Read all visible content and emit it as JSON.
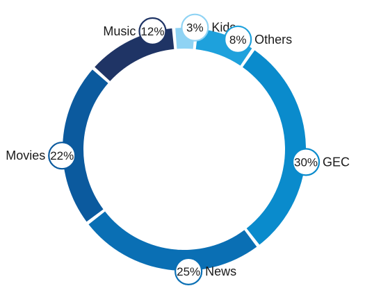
{
  "chart_data": {
    "type": "pie",
    "variant": "donut",
    "title": "",
    "slices": [
      {
        "label": "Kids",
        "value": 3,
        "value_label": "3%",
        "color": "#8fd3f4"
      },
      {
        "label": "Others",
        "value": 8,
        "value_label": "8%",
        "color": "#1ea1dc"
      },
      {
        "label": "GEC",
        "value": 30,
        "value_label": "30%",
        "color": "#0a8bcc"
      },
      {
        "label": "News",
        "value": 25,
        "value_label": "25%",
        "color": "#0a6fb4"
      },
      {
        "label": "Movies",
        "value": 22,
        "value_label": "22%",
        "color": "#0b5a9e"
      },
      {
        "label": "Music",
        "value": 12,
        "value_label": "12%",
        "color": "#1f3465"
      }
    ],
    "start_angle_deg": -5,
    "legend": "none",
    "label_placement": "outside-circled-percent"
  }
}
